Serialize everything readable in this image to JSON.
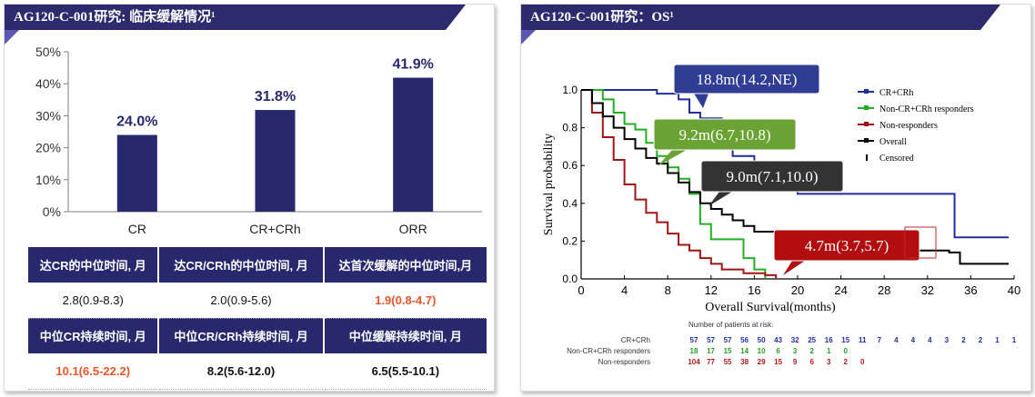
{
  "left_panel": {
    "title": "AG120-C-001研究: 临床缓解情况¹",
    "stats_table": {
      "rows": [
        {
          "headers": [
            "达CR的中位时间, 月",
            "达CR/CRh的中位时间, 月",
            "达首次缓解的中位时间,月"
          ],
          "values": [
            "2.8(0.9-8.3)",
            "2.0(0.9-5.6)",
            "1.9(0.8-4.7)"
          ]
        },
        {
          "headers": [
            "中位CR持续时间, 月",
            "中位CR/CRh持续时间, 月",
            "中位缓解持续时间, 月"
          ],
          "values": [
            "10.1(6.5-22.2)",
            "8.2(5.6-12.0)",
            "6.5(5.5-10.1)"
          ]
        }
      ]
    }
  },
  "right_panel": {
    "title": "AG120-C-001研究：OS¹",
    "callouts": [
      {
        "text": "18.8m(14.2,NE)",
        "color": "#2f3d94"
      },
      {
        "text": "9.2m(6.7,10.8)",
        "color": "#6aa333"
      },
      {
        "text": "9.0m(7.1,10.0)",
        "color": "#333333"
      },
      {
        "text": "4.7m(3.7,5.7)",
        "color": "#b20e10"
      }
    ],
    "risk_table": {
      "title": "Number of patients at risk:",
      "rows": [
        {
          "label": "CR+CRh",
          "color": "#1f2f9e",
          "values": [
            "57",
            "57",
            "57",
            "56",
            "50",
            "43",
            "32",
            "25",
            "16",
            "15",
            "11",
            "7",
            "4",
            "4",
            "4",
            "3",
            "2",
            "2",
            "1",
            "1"
          ]
        },
        {
          "label": "Non-CR+CRh responders",
          "color": "#2aa02a",
          "values": [
            "18",
            "17",
            "15",
            "14",
            "10",
            "6",
            "3",
            "2",
            "1",
            "0"
          ]
        },
        {
          "label": "Non-responders",
          "color": "#b01818",
          "values": [
            "104",
            "77",
            "55",
            "38",
            "29",
            "15",
            "9",
            "6",
            "3",
            "2",
            "0"
          ]
        }
      ]
    }
  },
  "chart_data": [
    {
      "type": "bar",
      "categories": [
        "CR",
        "CR+CRh",
        "ORR"
      ],
      "values": [
        24.0,
        31.8,
        41.9
      ],
      "value_labels": [
        "24.0%",
        "31.8%",
        "41.9%"
      ],
      "ylim": [
        0,
        50
      ],
      "yticks": [
        "0%",
        "10%",
        "20%",
        "30%",
        "40%",
        "50%"
      ],
      "bar_color": "#28286e",
      "grid": false
    },
    {
      "type": "line",
      "xlabel": "Overall Survival(months)",
      "ylabel": "Survival probability",
      "xlim": [
        0,
        40
      ],
      "ylim": [
        0,
        1.0
      ],
      "xticks": [
        "0",
        "4",
        "8",
        "12",
        "16",
        "20",
        "24",
        "28",
        "32",
        "36",
        "40"
      ],
      "yticks": [
        "0.0",
        "0.2",
        "0.4",
        "0.6",
        "0.8",
        "1.0"
      ],
      "legend_position": "top-right",
      "legend": [
        {
          "label": "CR+CRh",
          "color": "#1f2f9e"
        },
        {
          "label": "Non-CR+CRh responders",
          "color": "#22b022"
        },
        {
          "label": "Non-responders",
          "color": "#a01515"
        },
        {
          "label": "Overall",
          "color": "#000000"
        },
        {
          "label": "Censored",
          "color": "#000000"
        }
      ],
      "series": [
        {
          "name": "CR+CRh",
          "color": "#1f2f9e",
          "points": [
            [
              0,
              1.0
            ],
            [
              5,
              1.0
            ],
            [
              7,
              0.98
            ],
            [
              9,
              0.95
            ],
            [
              10,
              0.88
            ],
            [
              11,
              0.85
            ],
            [
              13,
              0.7
            ],
            [
              14,
              0.65
            ],
            [
              16,
              0.62
            ],
            [
              17,
              0.6
            ],
            [
              18,
              0.5
            ],
            [
              20,
              0.45
            ],
            [
              34,
              0.45
            ],
            [
              34.5,
              0.22
            ],
            [
              39.5,
              0.22
            ]
          ]
        },
        {
          "name": "Non-CR+CRh responders",
          "color": "#22b022",
          "points": [
            [
              0,
              1.0
            ],
            [
              2,
              0.95
            ],
            [
              3,
              0.88
            ],
            [
              4,
              0.82
            ],
            [
              5,
              0.79
            ],
            [
              6,
              0.72
            ],
            [
              7,
              0.65
            ],
            [
              8,
              0.59
            ],
            [
              9,
              0.53
            ],
            [
              10,
              0.45
            ],
            [
              11,
              0.29
            ],
            [
              12,
              0.21
            ],
            [
              15,
              0.11
            ],
            [
              16,
              0.05
            ],
            [
              17,
              0.0
            ]
          ]
        },
        {
          "name": "Non-responders",
          "color": "#a01515",
          "points": [
            [
              0,
              1.0
            ],
            [
              1,
              0.88
            ],
            [
              2,
              0.75
            ],
            [
              3,
              0.63
            ],
            [
              4,
              0.5
            ],
            [
              5,
              0.42
            ],
            [
              6,
              0.35
            ],
            [
              7,
              0.3
            ],
            [
              8,
              0.24
            ],
            [
              9,
              0.18
            ],
            [
              10,
              0.15
            ],
            [
              11,
              0.11
            ],
            [
              12,
              0.08
            ],
            [
              13,
              0.05
            ],
            [
              15,
              0.03
            ],
            [
              17,
              0.02
            ],
            [
              18,
              0.0
            ]
          ]
        },
        {
          "name": "Overall",
          "color": "#000000",
          "points": [
            [
              0,
              1.0
            ],
            [
              1,
              0.93
            ],
            [
              2,
              0.86
            ],
            [
              3,
              0.8
            ],
            [
              4,
              0.74
            ],
            [
              5,
              0.69
            ],
            [
              6,
              0.64
            ],
            [
              7,
              0.61
            ],
            [
              8,
              0.56
            ],
            [
              9,
              0.51
            ],
            [
              10,
              0.46
            ],
            [
              11,
              0.4
            ],
            [
              12,
              0.37
            ],
            [
              13,
              0.34
            ],
            [
              14,
              0.31
            ],
            [
              15,
              0.28
            ],
            [
              16,
              0.25
            ],
            [
              18,
              0.23
            ],
            [
              20,
              0.22
            ],
            [
              24,
              0.18
            ],
            [
              28,
              0.15
            ],
            [
              34,
              0.14
            ],
            [
              35,
              0.08
            ],
            [
              39.5,
              0.08
            ]
          ]
        }
      ]
    }
  ]
}
